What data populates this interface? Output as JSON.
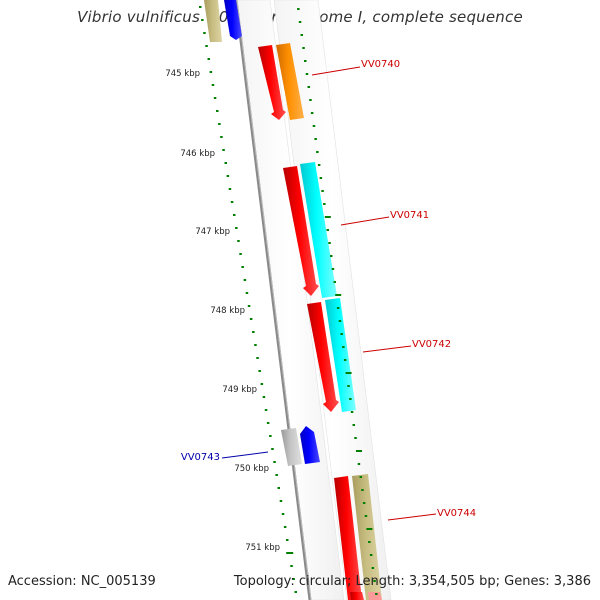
{
  "title": "Vibrio vulnificus YJ016 chromosome I, complete sequence",
  "footer": {
    "accession": "Accession: NC_005139",
    "summary": "Topology: circular; Length: 3,354,505 bp; Genes: 3,386"
  },
  "colors": {
    "gene_red": "#ff0000",
    "gene_orange": "#ff8c00",
    "gene_cyan": "#00ffff",
    "gene_khaki": "#c2b77a",
    "gene_blue": "#0000ff",
    "gene_gray": "#b8b8b8",
    "tick_green": "#008000",
    "label_red": "#cc0000",
    "label_blue": "#0000aa",
    "backbone": "#888888"
  },
  "scale_labels": [
    "745 kbp",
    "746 kbp",
    "747 kbp",
    "748 kbp",
    "749 kbp",
    "750 kbp",
    "751 kbp"
  ],
  "genes": [
    {
      "label": "VV0740",
      "label_color": "label_red"
    },
    {
      "label": "VV0741",
      "label_color": "label_red"
    },
    {
      "label": "VV0742",
      "label_color": "label_red"
    },
    {
      "label": "VV0743",
      "label_color": "label_blue"
    },
    {
      "label": "VV0744",
      "label_color": "label_red"
    }
  ]
}
